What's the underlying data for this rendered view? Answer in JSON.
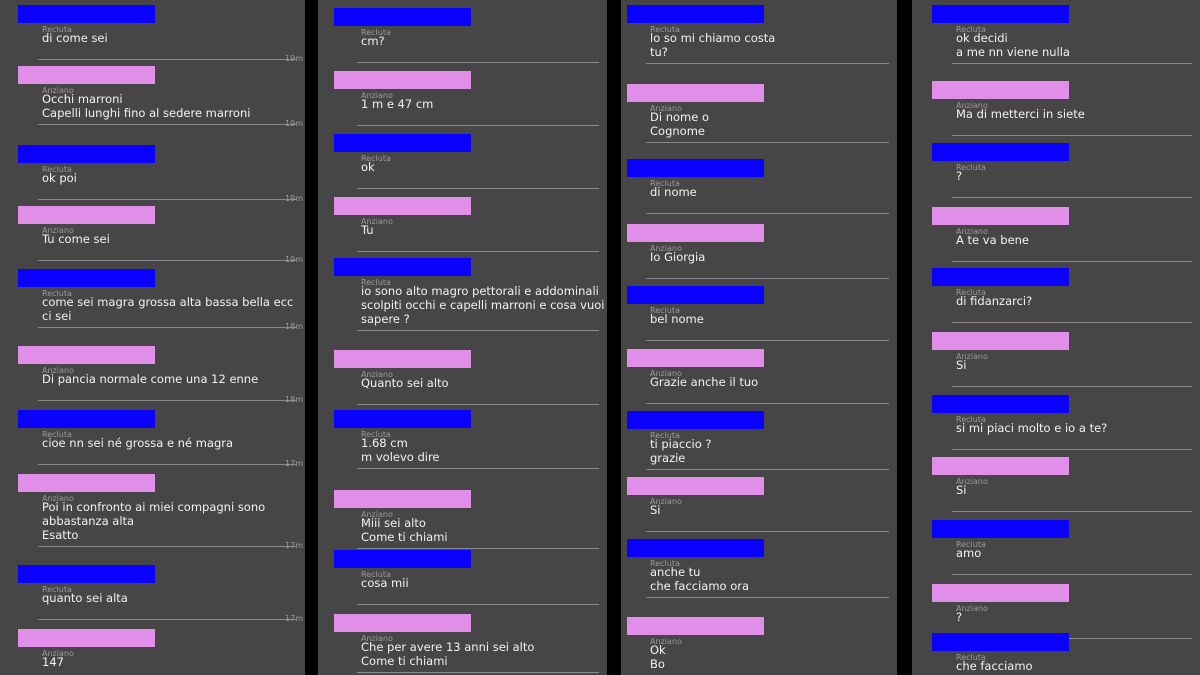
{
  "columns": [
    {
      "messages": [
        {
          "role": "Recluta",
          "lines": [
            "di come sei"
          ],
          "time": "19m"
        },
        {
          "role": "Anziano",
          "lines": [
            "Occhi marroni",
            "Capelli lunghi fino al sedere marroni"
          ],
          "time": "19m"
        },
        {
          "role": "Recluta",
          "lines": [
            "ok poi"
          ],
          "time": "19m"
        },
        {
          "role": "Anziano",
          "lines": [
            "Tu come sei"
          ],
          "time": "19m"
        },
        {
          "role": "Recluta",
          "lines": [
            "come sei magra grossa alta bassa bella ecc",
            "ci sei"
          ],
          "time": "18m"
        },
        {
          "role": "Anziano",
          "lines": [
            "Di pancia normale come una 12 enne"
          ],
          "time": "18m"
        },
        {
          "role": "Recluta",
          "lines": [
            "cioe nn sei né grossa e né magra"
          ],
          "time": "17m"
        },
        {
          "role": "Anziano",
          "lines": [
            "Poi in confronto ai miei compagni sono",
            "abbastanza alta",
            "Esatto"
          ],
          "time": "17m"
        },
        {
          "role": "Recluta",
          "lines": [
            "quanto sei alta"
          ],
          "time": "17m"
        },
        {
          "role": "Anziano",
          "lines": [
            "147"
          ]
        }
      ]
    },
    {
      "messages": [
        {
          "role": "Recluta",
          "lines": [
            "cm?"
          ]
        },
        {
          "role": "Anziano",
          "lines": [
            "1 m e 47 cm"
          ]
        },
        {
          "role": "Recluta",
          "lines": [
            "ok"
          ]
        },
        {
          "role": "Anziano",
          "lines": [
            "Tu"
          ]
        },
        {
          "role": "Recluta",
          "lines": [
            "io sono alto magro pettorali e addominali",
            "scolpiti occhi e capelli marroni e cosa vuoi",
            "sapere ?"
          ]
        },
        {
          "role": "Anziano",
          "lines": [
            "Quanto sei alto"
          ]
        },
        {
          "role": "Recluta",
          "lines": [
            "1.68 cm",
            "m volevo dire"
          ]
        },
        {
          "role": "Anziano",
          "lines": [
            "Miii sei alto",
            "Come ti chiami"
          ]
        },
        {
          "role": "Recluta",
          "lines": [
            "cosa mii"
          ]
        },
        {
          "role": "Anziano",
          "lines": [
            "Che per avere 13 anni sei alto",
            "Come ti chiami"
          ]
        }
      ]
    },
    {
      "messages": [
        {
          "role": "Recluta",
          "lines": [
            "lo so mi chiamo costa",
            "tu?"
          ]
        },
        {
          "role": "Anziano",
          "lines": [
            "Di nome o",
            "Cognome"
          ]
        },
        {
          "role": "Recluta",
          "lines": [
            "di nome"
          ]
        },
        {
          "role": "Anziano",
          "lines": [
            "Io Giorgia"
          ]
        },
        {
          "role": "Recluta",
          "lines": [
            "bel nome"
          ]
        },
        {
          "role": "Anziano",
          "lines": [
            "Grazie anche il tuo"
          ]
        },
        {
          "role": "Recluta",
          "lines": [
            "ti piaccio ?",
            "grazie"
          ]
        },
        {
          "role": "Anziano",
          "lines": [
            "Si"
          ]
        },
        {
          "role": "Recluta",
          "lines": [
            "anche tu",
            "che facciamo ora"
          ]
        },
        {
          "role": "Anziano",
          "lines": [
            "Ok",
            "Bo"
          ]
        }
      ]
    },
    {
      "messages": [
        {
          "role": "Recluta",
          "lines": [
            "ok decidi",
            "a me nn viene nulla"
          ]
        },
        {
          "role": "Anziano",
          "lines": [
            "Ma di metterci in siete"
          ]
        },
        {
          "role": "Recluta",
          "lines": [
            "?"
          ]
        },
        {
          "role": "Anziano",
          "lines": [
            "A te va bene"
          ]
        },
        {
          "role": "Recluta",
          "lines": [
            "di fidanzarci?"
          ]
        },
        {
          "role": "Anziano",
          "lines": [
            "Si"
          ]
        },
        {
          "role": "Recluta",
          "lines": [
            "si mi piaci molto e io a te?"
          ]
        },
        {
          "role": "Anziano",
          "lines": [
            "Si"
          ]
        },
        {
          "role": "Recluta",
          "lines": [
            "amo"
          ]
        },
        {
          "role": "Anziano",
          "lines": [
            "?"
          ]
        },
        {
          "role": "Recluta",
          "lines": [
            "che facciamo"
          ]
        }
      ]
    }
  ]
}
